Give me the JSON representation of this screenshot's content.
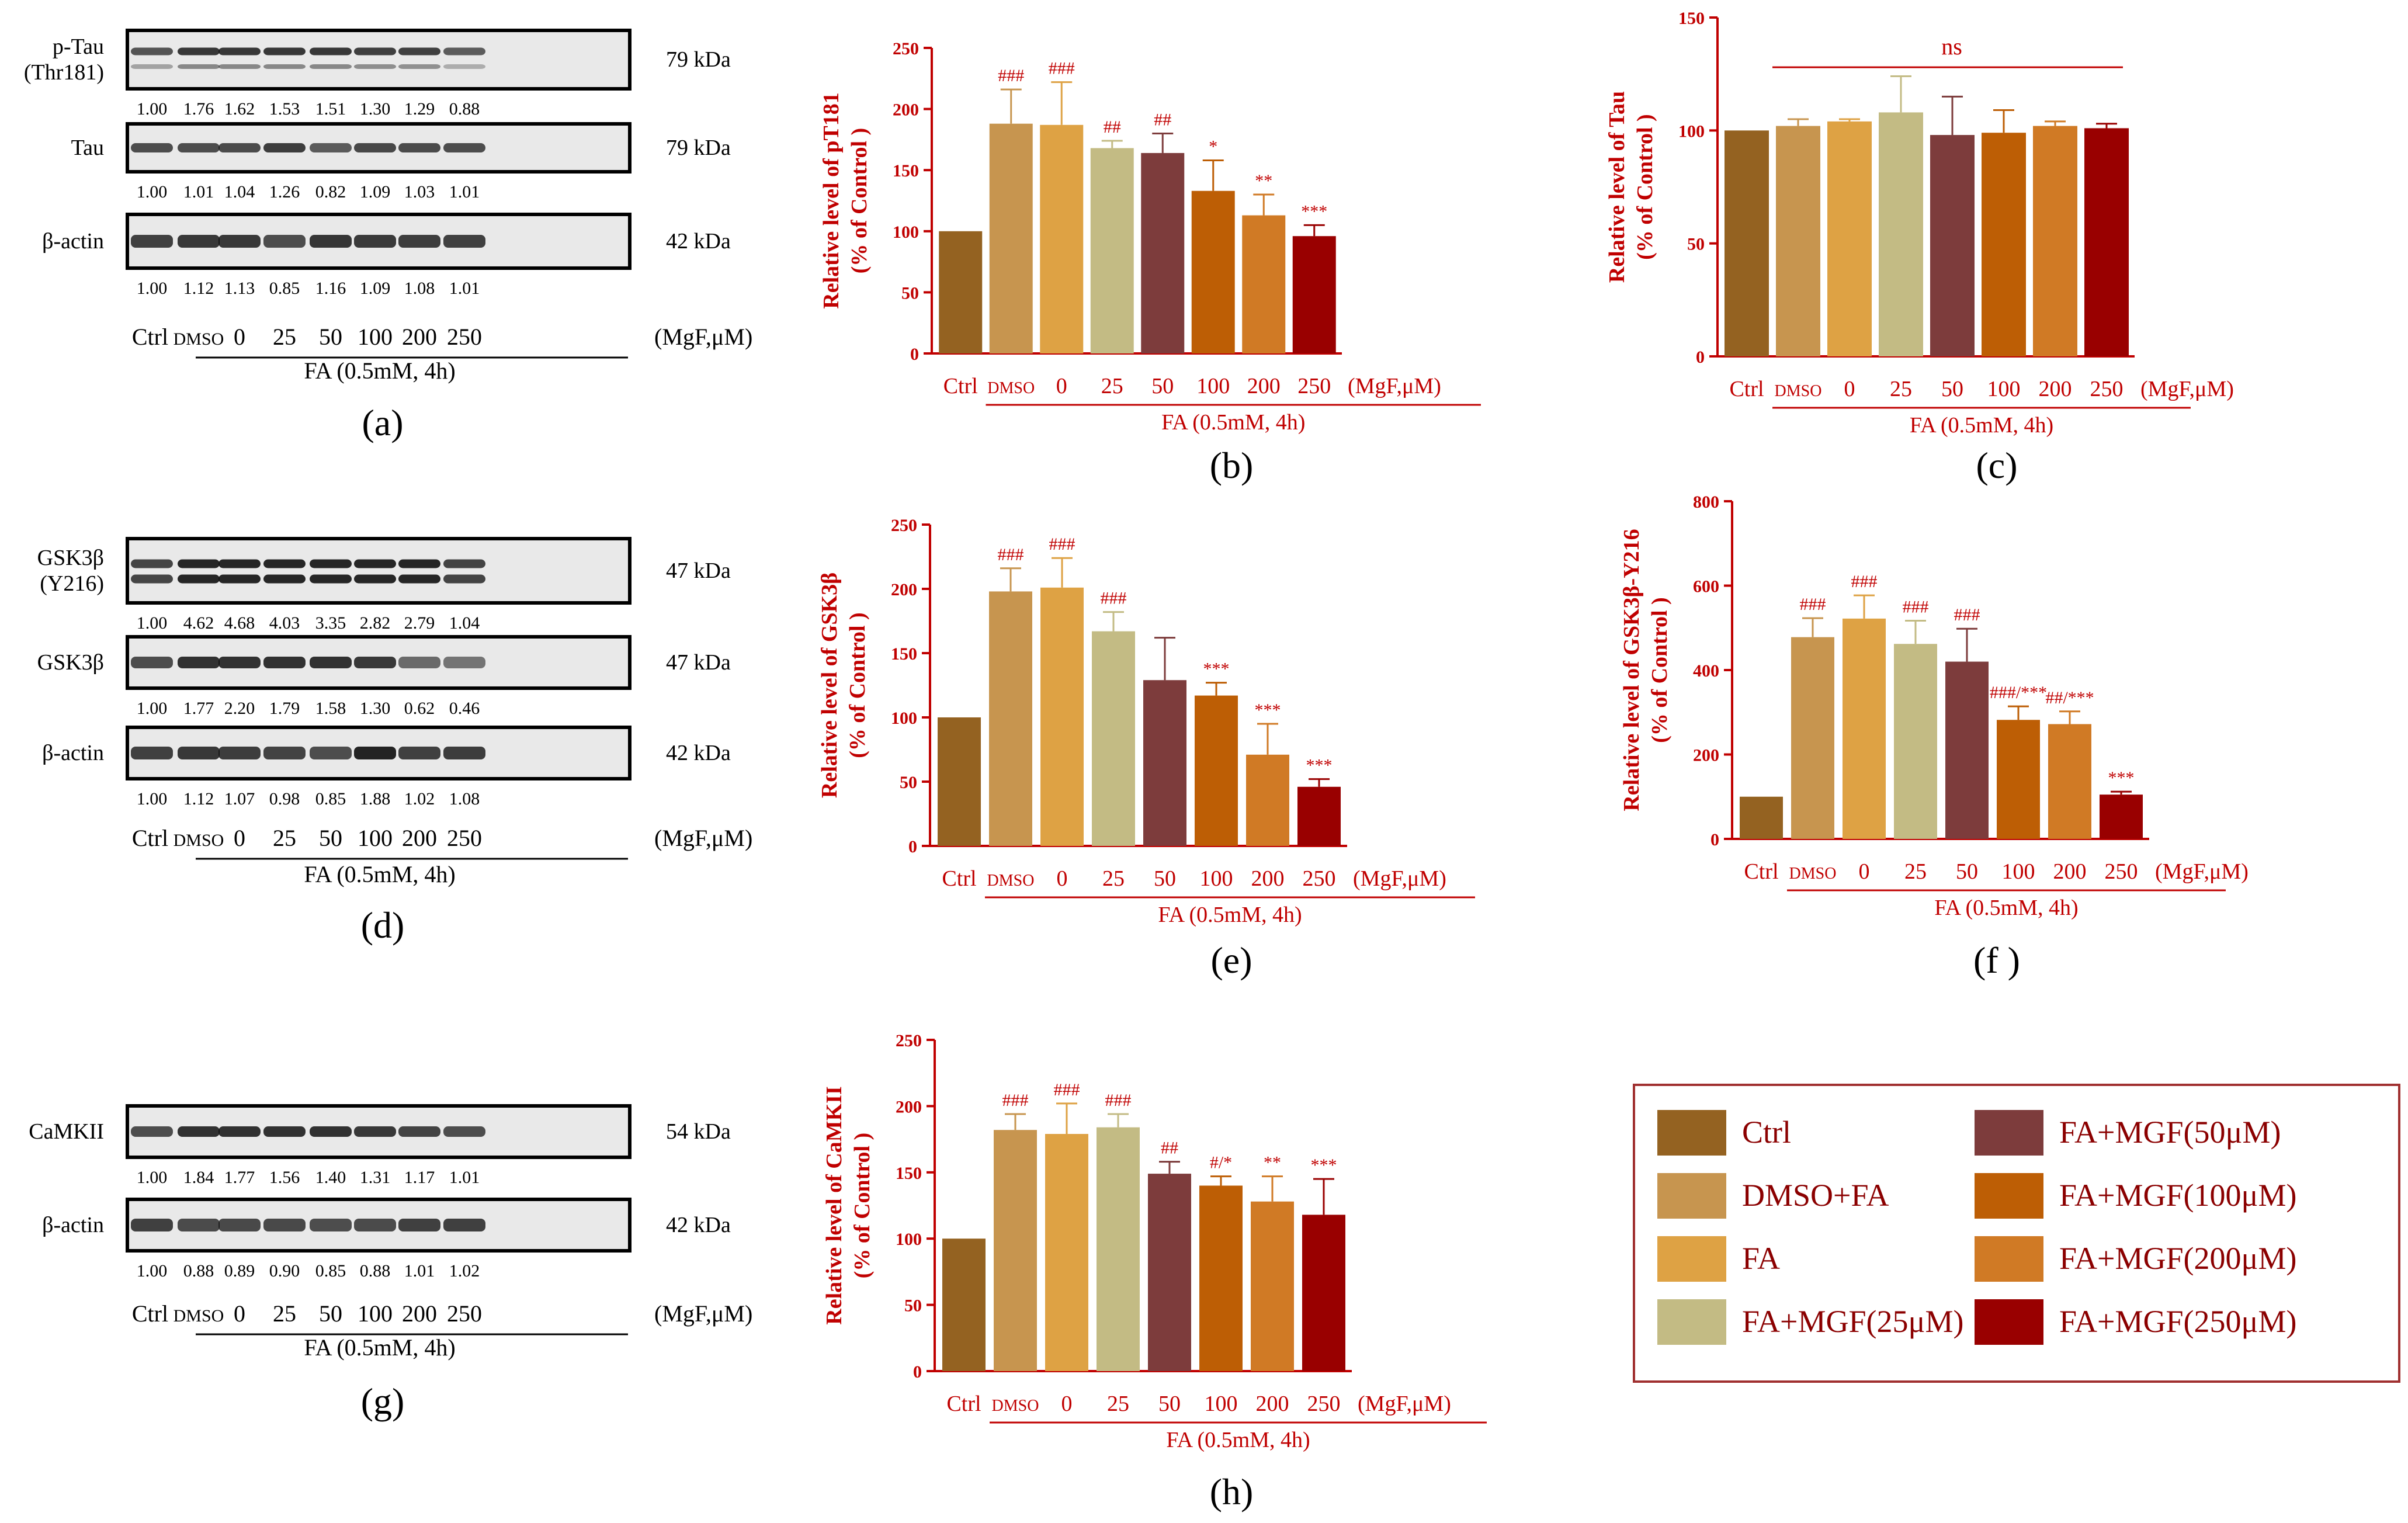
{
  "colors": {
    "axis": "#c00000",
    "black": "#000000",
    "bars": [
      "#946221",
      "#c7954f",
      "#dea244",
      "#c3bb84",
      "#7d3c3c",
      "#bd5e05",
      "#d07a25",
      "#990000"
    ]
  },
  "common": {
    "xticks": [
      "Ctrl",
      "DMSO",
      "0",
      "25",
      "50",
      "100",
      "200",
      "250"
    ],
    "unit": "(MgF,μM)",
    "group_label": "FA (0.5mM, 4h)"
  },
  "blots": [
    {
      "caption": "(a)",
      "rows": [
        {
          "label": [
            "p-Tau",
            "(Thr181)"
          ],
          "kda": "79 kDa",
          "values": [
            "1.00",
            "1.76",
            "1.62",
            "1.53",
            "1.51",
            "1.30",
            "1.29",
            "0.88"
          ]
        },
        {
          "label": [
            "Tau"
          ],
          "kda": "79 kDa",
          "values": [
            "1.00",
            "1.01",
            "1.04",
            "1.26",
            "0.82",
            "1.09",
            "1.03",
            "1.01"
          ]
        },
        {
          "label": [
            "β-actin"
          ],
          "kda": "42 kDa",
          "values": [
            "1.00",
            "1.12",
            "1.13",
            "0.85",
            "1.16",
            "1.09",
            "1.08",
            "1.01"
          ]
        }
      ]
    },
    {
      "caption": "(d)",
      "rows": [
        {
          "label": [
            "GSK3β",
            "(Y216)"
          ],
          "kda": "47 kDa",
          "values": [
            "1.00",
            "4.62",
            "4.68",
            "4.03",
            "3.35",
            "2.82",
            "2.79",
            "1.04"
          ]
        },
        {
          "label": [
            "GSK3β"
          ],
          "kda": "47 kDa",
          "values": [
            "1.00",
            "1.77",
            "2.20",
            "1.79",
            "1.58",
            "1.30",
            "0.62",
            "0.46"
          ]
        },
        {
          "label": [
            "β-actin"
          ],
          "kda": "42 kDa",
          "values": [
            "1.00",
            "1.12",
            "1.07",
            "0.98",
            "0.85",
            "1.88",
            "1.02",
            "1.08"
          ]
        }
      ]
    },
    {
      "caption": "(g)",
      "rows": [
        {
          "label": [
            "CaMKII"
          ],
          "kda": "54 kDa",
          "values": [
            "1.00",
            "1.84",
            "1.77",
            "1.56",
            "1.40",
            "1.31",
            "1.17",
            "1.01"
          ]
        },
        {
          "label": [
            "β-actin"
          ],
          "kda": "42 kDa",
          "values": [
            "1.00",
            "0.88",
            "0.89",
            "0.90",
            "0.85",
            "0.88",
            "1.01",
            "1.02"
          ]
        }
      ]
    }
  ],
  "chart_data": [
    {
      "type": "bar",
      "caption": "(b)",
      "ylabel": [
        "Relative level of pT181",
        "(% of Control )"
      ],
      "ylim": [
        0,
        250
      ],
      "yticks": [
        0,
        50,
        100,
        150,
        200,
        250
      ],
      "categories": [
        "Ctrl",
        "DMSO",
        "0",
        "25",
        "50",
        "100",
        "200",
        "250"
      ],
      "values": [
        100,
        188,
        187,
        168,
        164,
        133,
        113,
        96
      ],
      "errors": [
        0,
        28,
        35,
        6,
        16,
        25,
        17,
        9
      ],
      "annotations": [
        "",
        "###",
        "###",
        "##",
        "##",
        "*",
        "**",
        "***"
      ]
    },
    {
      "type": "bar",
      "caption": "(c)",
      "ylabel": [
        "Relative level of Tau",
        "(% of Control )"
      ],
      "ylim": [
        0,
        150
      ],
      "yticks": [
        0,
        50,
        100,
        150
      ],
      "categories": [
        "Ctrl",
        "DMSO",
        "0",
        "25",
        "50",
        "100",
        "200",
        "250"
      ],
      "values": [
        100,
        102,
        104,
        108,
        98,
        99,
        102,
        101
      ],
      "errors": [
        0,
        3,
        1,
        16,
        17,
        10,
        2,
        2
      ],
      "annotations": [
        "",
        "",
        "",
        "",
        "",
        "",
        "",
        ""
      ],
      "significance_bar": "ns"
    },
    {
      "type": "bar",
      "caption": "(e)",
      "ylabel": [
        "Relative level of GSK3β",
        "(% of Control )"
      ],
      "ylim": [
        0,
        250
      ],
      "yticks": [
        0,
        50,
        100,
        150,
        200,
        250
      ],
      "categories": [
        "Ctrl",
        "DMSO",
        "0",
        "25",
        "50",
        "100",
        "200",
        "250"
      ],
      "values": [
        100,
        198,
        201,
        167,
        129,
        117,
        71,
        46
      ],
      "errors": [
        0,
        18,
        23,
        15,
        33,
        10,
        24,
        6
      ],
      "annotations": [
        "",
        "###",
        "###",
        "###",
        "",
        "***",
        "***",
        "***"
      ]
    },
    {
      "type": "bar",
      "caption": "(f )",
      "ylabel": [
        "Relative level of GSK3β-Y216",
        "(% of Control )"
      ],
      "ylim": [
        0,
        800
      ],
      "yticks": [
        0,
        200,
        400,
        600,
        800
      ],
      "categories": [
        "Ctrl",
        "DMSO",
        "0",
        "25",
        "50",
        "100",
        "200",
        "250"
      ],
      "values": [
        100,
        478,
        522,
        462,
        420,
        282,
        272,
        105
      ],
      "errors": [
        0,
        45,
        55,
        55,
        78,
        32,
        30,
        7
      ],
      "annotations": [
        "",
        "###",
        "###",
        "###",
        "###",
        "###/***",
        "##/***",
        "***"
      ]
    },
    {
      "type": "bar",
      "caption": "(h)",
      "ylabel": [
        "Relative level of CaMKII",
        "(% of Control )"
      ],
      "ylim": [
        0,
        250
      ],
      "yticks": [
        0,
        50,
        100,
        150,
        200,
        250
      ],
      "categories": [
        "Ctrl",
        "DMSO",
        "0",
        "25",
        "50",
        "100",
        "200",
        "250"
      ],
      "values": [
        100,
        182,
        179,
        184,
        149,
        140,
        128,
        118
      ],
      "errors": [
        0,
        12,
        23,
        10,
        9,
        7,
        19,
        27
      ],
      "annotations": [
        "",
        "###",
        "###",
        "###",
        "##",
        "#/*",
        "**",
        "***"
      ]
    }
  ],
  "legend": [
    "Ctrl",
    "DMSO+FA",
    "FA",
    "FA+MGF(25μM)",
    "FA+MGF(50μM)",
    "FA+MGF(100μM)",
    "FA+MGF(200μM)",
    "FA+MGF(250μM)"
  ]
}
